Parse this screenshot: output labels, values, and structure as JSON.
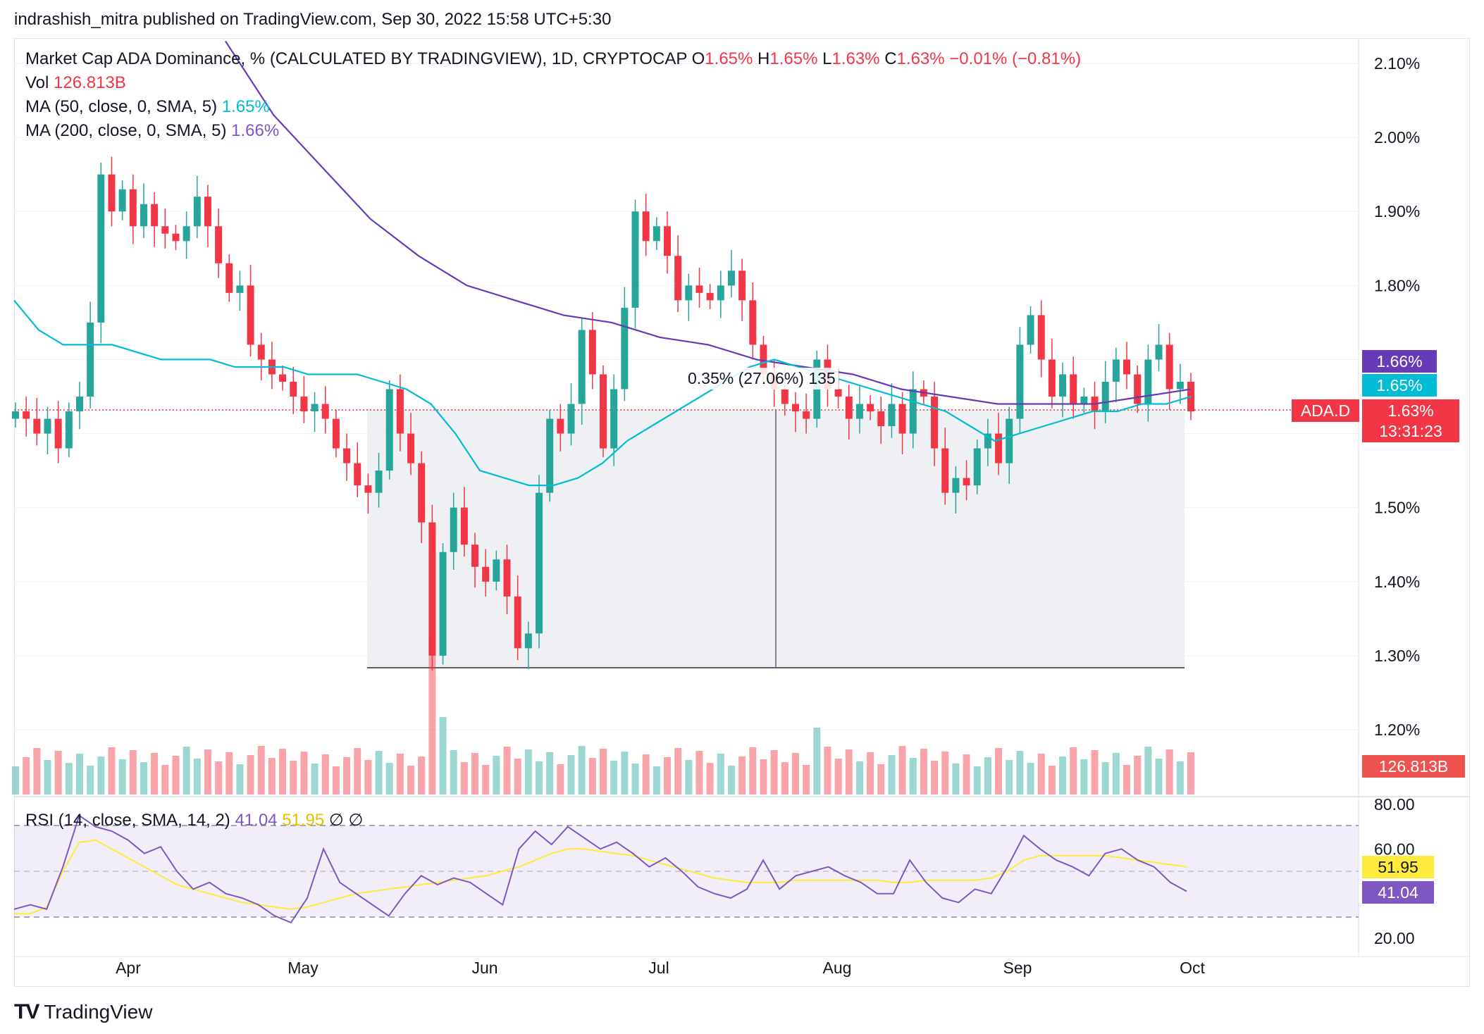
{
  "header": {
    "publish_line": "indrashish_mitra published on TradingView.com, Sep 30, 2022 15:58 UTC+5:30"
  },
  "legend": {
    "title": "Market Cap ADA Dominance, % (CALCULATED BY TRADINGVIEW), 1D, CRYPTOCAP",
    "o_label": "O",
    "o_value": "1.65%",
    "h_label": "H",
    "h_value": "1.65%",
    "l_label": "L",
    "l_value": "1.63%",
    "c_label": "C",
    "c_value": "1.63%",
    "change": "−0.01% (−0.81%)",
    "vol_label": "Vol",
    "vol_value": "126.813B",
    "ma50_label": "MA (50, close, 0, SMA, 5)",
    "ma50_value": "1.65%",
    "ma200_label": "MA (200, close, 0, SMA, 5)",
    "ma200_value": "1.66%"
  },
  "rsi_legend": {
    "label": "RSI (14, close, SMA, 14, 2)",
    "rsi_value": "41.04",
    "sma_value": "51.95",
    "extra1": "∅",
    "extra2": "∅"
  },
  "price_tags": {
    "ma200": "1.66%",
    "ma50": "1.65%",
    "symbol": "ADA.D",
    "last": "1.63%",
    "countdown": "13:31:23",
    "volume": "126.813B",
    "rsi_sma": "51.95",
    "rsi": "41.04"
  },
  "measure_label": "0.35% (27.06%) 135",
  "footer": {
    "brand": "TradingView"
  },
  "colors": {
    "up": "#26a69a",
    "down": "#f23645",
    "ma50": "#00bcd4",
    "ma200": "#673ab7",
    "rsi": "#7e57c2",
    "rsi_sma": "#ffeb3b"
  },
  "chart_data": {
    "type": "candlestick",
    "title": "Market Cap ADA Dominance, % (CALCULATED BY TRADINGVIEW), 1D, CRYPTOCAP",
    "y_axis_labels": [
      "2.10%",
      "2.00%",
      "1.90%",
      "1.80%",
      "1.70%",
      "1.60%",
      "1.50%",
      "1.40%",
      "1.30%",
      "1.20%"
    ],
    "x_axis_labels": [
      "Apr",
      "May",
      "Jun",
      "Jul",
      "Aug",
      "Sep",
      "Oct"
    ],
    "ylim": [
      1.15,
      2.13
    ],
    "rsi_axis_labels": [
      "80.00",
      "60.00",
      "20.00"
    ],
    "rsi_levels": [
      70,
      50,
      30
    ],
    "close_series": [
      1.63,
      1.62,
      1.6,
      1.62,
      1.58,
      1.63,
      1.65,
      1.75,
      1.95,
      1.9,
      1.93,
      1.88,
      1.91,
      1.88,
      1.87,
      1.86,
      1.88,
      1.92,
      1.88,
      1.83,
      1.79,
      1.8,
      1.72,
      1.7,
      1.68,
      1.67,
      1.65,
      1.63,
      1.64,
      1.62,
      1.58,
      1.56,
      1.53,
      1.52,
      1.55,
      1.66,
      1.6,
      1.56,
      1.48,
      1.3,
      1.44,
      1.5,
      1.45,
      1.42,
      1.4,
      1.43,
      1.38,
      1.31,
      1.33,
      1.52,
      1.62,
      1.6,
      1.64,
      1.74,
      1.68,
      1.58,
      1.66,
      1.77,
      1.9,
      1.86,
      1.88,
      1.84,
      1.78,
      1.8,
      1.79,
      1.78,
      1.8,
      1.82,
      1.78,
      1.72,
      1.68,
      1.66,
      1.64,
      1.63,
      1.62,
      1.7,
      1.66,
      1.65,
      1.62,
      1.64,
      1.63,
      1.61,
      1.64,
      1.6,
      1.66,
      1.65,
      1.58,
      1.52,
      1.54,
      1.53,
      1.58,
      1.6,
      1.56,
      1.62,
      1.72,
      1.76,
      1.7,
      1.65,
      1.68,
      1.64,
      1.65,
      1.63,
      1.67,
      1.7,
      1.68,
      1.64,
      1.7,
      1.72,
      1.66,
      1.67,
      1.63
    ],
    "ma50_series": [
      1.78,
      1.74,
      1.72,
      1.72,
      1.72,
      1.71,
      1.7,
      1.7,
      1.7,
      1.69,
      1.69,
      1.69,
      1.68,
      1.68,
      1.68,
      1.67,
      1.66,
      1.64,
      1.6,
      1.55,
      1.54,
      1.53,
      1.53,
      1.54,
      1.56,
      1.59,
      1.61,
      1.63,
      1.65,
      1.67,
      1.69,
      1.7,
      1.69,
      1.68,
      1.67,
      1.66,
      1.65,
      1.64,
      1.63,
      1.61,
      1.59,
      1.6,
      1.61,
      1.62,
      1.63,
      1.63,
      1.64,
      1.64,
      1.65
    ],
    "ma200_series": [
      2.13,
      2.03,
      1.96,
      1.89,
      1.84,
      1.8,
      1.78,
      1.76,
      1.75,
      1.73,
      1.72,
      1.7,
      1.69,
      1.68,
      1.66,
      1.65,
      1.64,
      1.64,
      1.64,
      1.65,
      1.66
    ],
    "rsi_series": [
      33,
      35,
      33,
      52,
      75,
      70,
      68,
      64,
      58,
      61,
      50,
      42,
      45,
      40,
      38,
      35,
      30,
      27,
      38,
      60,
      45,
      40,
      35,
      30,
      40,
      48,
      44,
      47,
      45,
      40,
      35,
      60,
      68,
      62,
      70,
      65,
      60,
      63,
      58,
      52,
      56,
      50,
      43,
      40,
      38,
      42,
      55,
      42,
      48,
      50,
      52,
      48,
      45,
      40,
      40,
      55,
      45,
      38,
      36,
      42,
      40,
      52,
      66,
      60,
      55,
      52,
      48,
      58,
      60,
      55,
      52,
      45,
      41
    ],
    "rsi_sma_series": [
      31,
      31,
      34,
      50,
      63,
      64,
      60,
      56,
      52,
      48,
      44,
      42,
      40,
      38,
      36,
      35,
      34,
      33,
      34,
      36,
      38,
      40,
      41,
      42,
      43,
      44,
      45,
      46,
      47,
      48,
      50,
      52,
      55,
      58,
      60,
      60,
      59,
      58,
      57,
      55,
      53,
      51,
      49,
      47,
      46,
      45,
      45,
      45,
      46,
      46,
      46,
      46,
      46,
      46,
      45,
      45,
      46,
      46,
      46,
      46,
      47,
      50,
      55,
      57,
      57,
      57,
      57,
      57,
      56,
      55,
      54,
      53,
      52
    ]
  }
}
